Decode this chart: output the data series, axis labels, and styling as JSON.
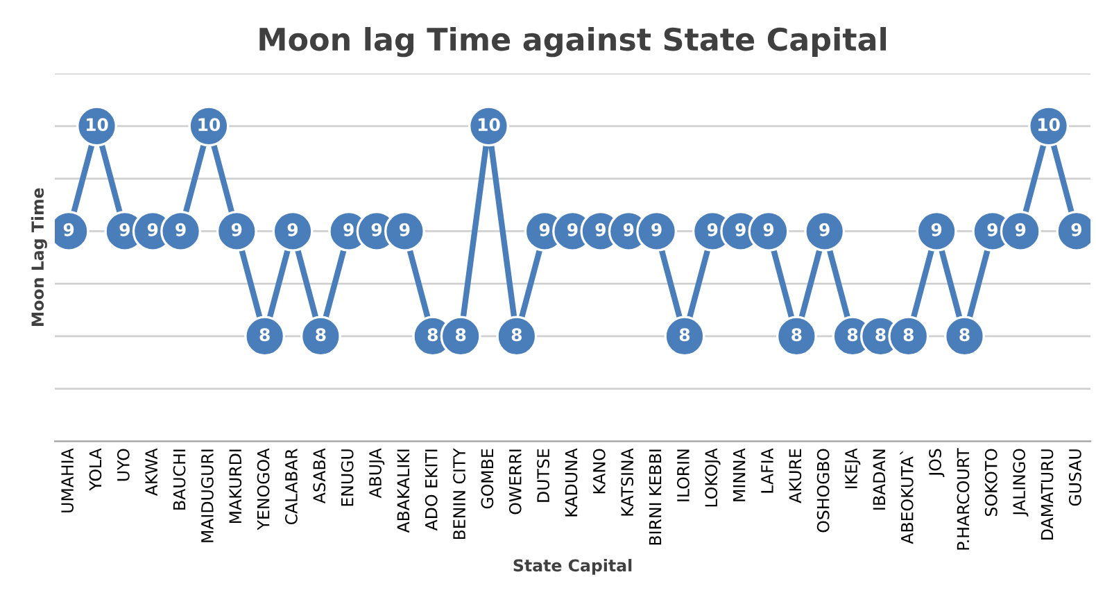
{
  "chart_data": {
    "type": "line",
    "title": "Moon lag Time against State Capital",
    "xlabel": "State Capital",
    "ylabel": "Moon Lag Time",
    "categories": [
      "UMAHIA",
      "YOLA",
      "UYO",
      "AKWA",
      "BAUCHI",
      "MAIDUGURI",
      "MAKURDI",
      "YENOGOA",
      "CALABAR",
      "ASABA",
      "ENUGU",
      "ABUJA",
      "ABAKALIKI",
      "ADO EKITI",
      "BENIN CITY",
      "GOMBE",
      "OWERRI",
      "DUTSE",
      "KADUNA",
      "KANO",
      "KATSINA",
      "BIRNI KEBBI",
      "ILORIN",
      "LOKOJA",
      "MINNA",
      "LAFIA",
      "AKURE",
      "OSHOGBO",
      "IKEJA",
      "IBADAN",
      "ABEOKUTA`",
      "JOS",
      "P.HARCOURT",
      "SOKOTO",
      "JALINGO",
      "DAMATURU",
      "GUSAU"
    ],
    "series": [
      {
        "color": "#4a7ebb",
        "values": [
          9,
          10,
          9,
          9,
          9,
          10,
          9,
          8,
          9,
          8,
          9,
          9,
          9,
          8,
          8,
          10,
          8,
          9,
          9,
          9,
          9,
          9,
          8,
          9,
          9,
          9,
          8,
          9,
          8,
          8,
          8,
          9,
          8,
          9,
          9,
          10,
          9
        ]
      }
    ],
    "ylim": [
      7,
      10.5
    ],
    "yticks": [
      {
        "value": 7.5,
        "label": null
      },
      {
        "value": 8,
        "label": null
      },
      {
        "value": 8.5,
        "label": null
      },
      {
        "value": 9,
        "label": null
      },
      {
        "value": 9.5,
        "label": null
      },
      {
        "value": 10,
        "label": null
      },
      {
        "value": 10.5,
        "label": null
      }
    ],
    "tick_labels": "x",
    "grid": "y",
    "marker": "circle",
    "line_style": "solid",
    "data_labels": true
  }
}
